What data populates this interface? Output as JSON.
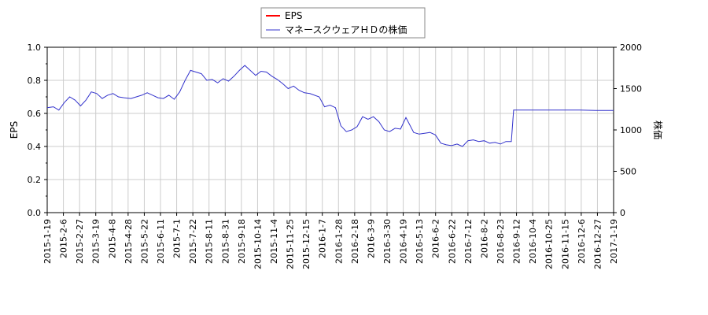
{
  "chart_data": {
    "type": "line",
    "legend": {
      "placement": "top-center",
      "entries": [
        {
          "label": "EPS",
          "color": "#ff0000"
        },
        {
          "label": "マネースクウェアＨＤの株価",
          "color": "#3333cc"
        }
      ]
    },
    "y_left": {
      "label": "EPS",
      "range": [
        0.0,
        1.0
      ],
      "ticks": [
        "0.0",
        "0.2",
        "0.4",
        "0.6",
        "0.8",
        "1.0"
      ]
    },
    "y_right": {
      "label": "株価",
      "range": [
        0,
        2000
      ],
      "ticks": [
        "0",
        "500",
        "1000",
        "1500",
        "2000"
      ]
    },
    "x_range": [
      "2015-01-19",
      "2017-01-19"
    ],
    "x_ticks": [
      "2015-1-19",
      "2015-2-6",
      "2015-2-27",
      "2015-3-19",
      "2015-4-8",
      "2015-4-28",
      "2015-5-22",
      "2015-6-11",
      "2015-7-1",
      "2015-7-22",
      "2015-8-11",
      "2015-8-31",
      "2015-9-18",
      "2015-10-14",
      "2015-11-4",
      "2015-11-25",
      "2015-12-15",
      "2016-1-7",
      "2016-1-28",
      "2016-2-18",
      "2016-3-9",
      "2016-3-30",
      "2016-4-19",
      "2016-5-13",
      "2016-6-2",
      "2016-6-22",
      "2016-7-12",
      "2016-8-2",
      "2016-8-23",
      "2016-9-12",
      "2016-10-4",
      "2016-10-25",
      "2016-11-15",
      "2016-12-6",
      "2016-12-27",
      "2017-1-19"
    ],
    "grid": true,
    "series": [
      {
        "name": "マネースクウェアＨＤの株価",
        "axis": "right",
        "color": "#3333cc",
        "x": [
          "2015-01-19",
          "2015-01-27",
          "2015-02-03",
          "2015-02-10",
          "2015-02-17",
          "2015-02-24",
          "2015-03-03",
          "2015-03-10",
          "2015-03-17",
          "2015-03-24",
          "2015-03-31",
          "2015-04-07",
          "2015-04-14",
          "2015-04-21",
          "2015-04-28",
          "2015-05-07",
          "2015-05-14",
          "2015-05-21",
          "2015-05-28",
          "2015-06-04",
          "2015-06-11",
          "2015-06-18",
          "2015-06-25",
          "2015-07-02",
          "2015-07-09",
          "2015-07-16",
          "2015-07-23",
          "2015-07-30",
          "2015-08-06",
          "2015-08-13",
          "2015-08-20",
          "2015-08-27",
          "2015-09-03",
          "2015-09-10",
          "2015-09-17",
          "2015-09-24",
          "2015-10-01",
          "2015-10-08",
          "2015-10-15",
          "2015-10-22",
          "2015-10-29",
          "2015-11-05",
          "2015-11-12",
          "2015-11-19",
          "2015-11-26",
          "2015-12-03",
          "2015-12-10",
          "2015-12-17",
          "2015-12-24",
          "2016-01-05",
          "2016-01-12",
          "2016-01-19",
          "2016-01-26",
          "2016-02-02",
          "2016-02-09",
          "2016-02-16",
          "2016-02-23",
          "2016-03-01",
          "2016-03-08",
          "2016-03-15",
          "2016-03-22",
          "2016-03-29",
          "2016-04-05",
          "2016-04-12",
          "2016-04-19",
          "2016-04-26",
          "2016-05-06",
          "2016-05-13",
          "2016-05-20",
          "2016-05-27",
          "2016-06-03",
          "2016-06-10",
          "2016-06-17",
          "2016-06-24",
          "2016-07-01",
          "2016-07-08",
          "2016-07-15",
          "2016-07-22",
          "2016-07-29",
          "2016-08-05",
          "2016-08-12",
          "2016-08-19",
          "2016-08-26",
          "2016-09-02",
          "2016-09-09",
          "2016-09-12",
          "2016-09-20",
          "2016-10-04",
          "2016-10-25",
          "2016-11-15",
          "2016-12-06",
          "2016-12-27",
          "2017-01-19"
        ],
        "values": [
          1270,
          1280,
          1240,
          1330,
          1400,
          1360,
          1290,
          1360,
          1460,
          1440,
          1380,
          1420,
          1440,
          1400,
          1390,
          1380,
          1400,
          1420,
          1450,
          1420,
          1390,
          1380,
          1420,
          1370,
          1460,
          1600,
          1720,
          1700,
          1680,
          1600,
          1610,
          1570,
          1620,
          1590,
          1650,
          1720,
          1780,
          1720,
          1660,
          1710,
          1700,
          1650,
          1610,
          1560,
          1500,
          1530,
          1480,
          1450,
          1440,
          1400,
          1280,
          1300,
          1270,
          1050,
          980,
          1000,
          1040,
          1160,
          1130,
          1160,
          1100,
          1000,
          980,
          1020,
          1010,
          1150,
          970,
          950,
          960,
          970,
          940,
          840,
          820,
          810,
          830,
          800,
          870,
          880,
          860,
          870,
          840,
          850,
          830,
          860,
          860,
          1240,
          1240,
          1240,
          1240,
          1240,
          1240,
          1235,
          1235
        ]
      }
    ]
  }
}
